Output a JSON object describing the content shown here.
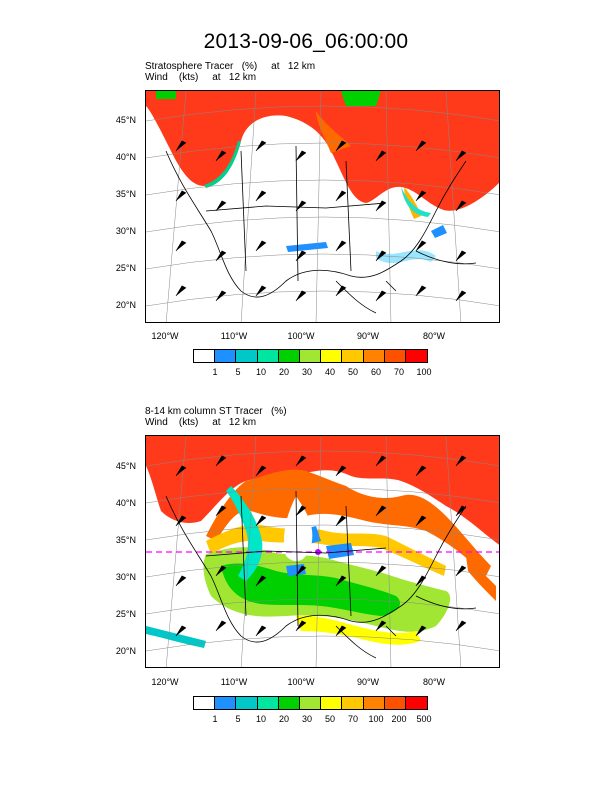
{
  "title": "2013-09-06_06:00:00",
  "panel1": {
    "line1": "Stratosphere Tracer   (%)     at   12 km",
    "line2": "Wind    (kts)     at   12 km",
    "colorbar_labels": [
      "1",
      "5",
      "10",
      "20",
      "30",
      "40",
      "50",
      "60",
      "70",
      "100"
    ]
  },
  "panel2": {
    "line1": "8-14 km column ST Tracer   (%)",
    "line2": "Wind    (kts)     at   12 km",
    "colorbar_labels": [
      "1",
      "5",
      "10",
      "20",
      "30",
      "50",
      "70",
      "100",
      "200",
      "500"
    ]
  },
  "lat_labels": [
    "45°N",
    "40°N",
    "35°N",
    "30°N",
    "25°N",
    "20°N"
  ],
  "lon_labels": [
    "120°W",
    "110°W",
    "100°W",
    "90°W",
    "80°W"
  ],
  "colorbar_colors": [
    "#ffffff",
    "#1e90ff",
    "#00c8c8",
    "#00e6a0",
    "#00d000",
    "#a0e632",
    "#ffff00",
    "#ffc800",
    "#ff8200",
    "#ff5000",
    "#ff0000"
  ]
}
